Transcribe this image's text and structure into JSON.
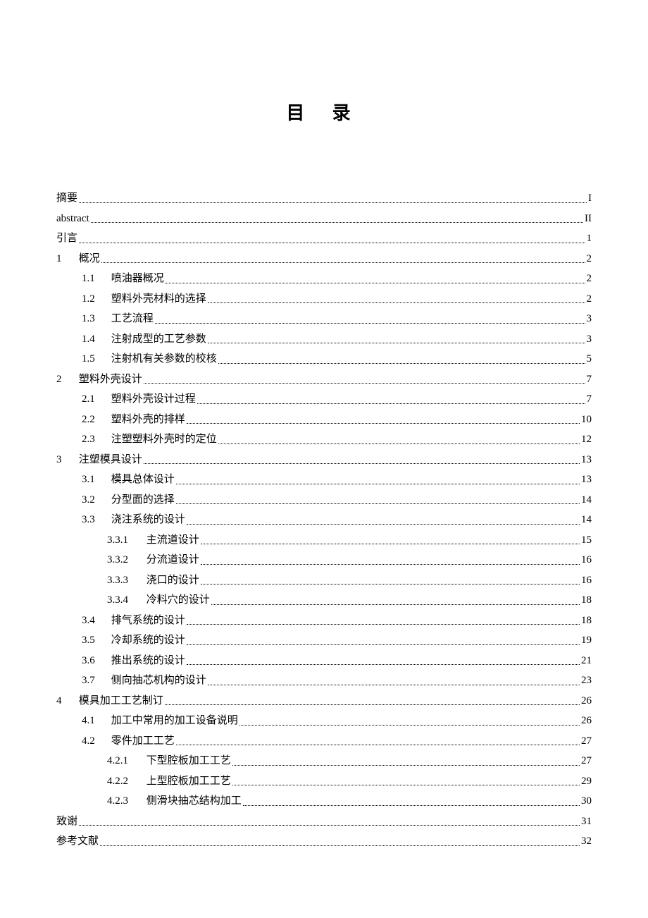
{
  "title": "目 录",
  "entries": [
    {
      "indent": 0,
      "num": "",
      "label": "摘要",
      "page": "I"
    },
    {
      "indent": 0,
      "num": "",
      "label": "abstract",
      "page": "II"
    },
    {
      "indent": 0,
      "num": "",
      "label": "引言",
      "page": "1"
    },
    {
      "indent": 0,
      "num": "1",
      "label": "概况",
      "page": "2"
    },
    {
      "indent": 1,
      "num": "1.1",
      "label": "喷油器概况",
      "page": "2"
    },
    {
      "indent": 1,
      "num": "1.2",
      "label": "塑料外壳材料的选择",
      "page": "2"
    },
    {
      "indent": 1,
      "num": "1.3",
      "label": "工艺流程",
      "page": "3"
    },
    {
      "indent": 1,
      "num": "1.4",
      "label": "注射成型的工艺参数",
      "page": "3"
    },
    {
      "indent": 1,
      "num": "1.5",
      "label": "注射机有关参数的校核",
      "page": "5"
    },
    {
      "indent": 0,
      "num": "2",
      "label": "塑料外壳设计",
      "page": "7"
    },
    {
      "indent": 1,
      "num": "2.1",
      "label": "塑料外壳设计过程",
      "page": "7"
    },
    {
      "indent": 1,
      "num": "2.2",
      "label": "塑料外壳的排样",
      "page": "10"
    },
    {
      "indent": 1,
      "num": "2.3",
      "label": "注塑塑料外壳时的定位",
      "page": "12"
    },
    {
      "indent": 0,
      "num": "3",
      "label": "注塑模具设计",
      "page": "13"
    },
    {
      "indent": 1,
      "num": "3.1",
      "label": "模具总体设计",
      "page": "13"
    },
    {
      "indent": 1,
      "num": "3.2",
      "label": "分型面的选择",
      "page": "14"
    },
    {
      "indent": 1,
      "num": "3.3",
      "label": "浇注系统的设计",
      "page": "14"
    },
    {
      "indent": 2,
      "num": "3.3.1",
      "label": "主流道设计",
      "page": "15"
    },
    {
      "indent": 2,
      "num": "3.3.2",
      "label": "分流道设计",
      "page": "16"
    },
    {
      "indent": 2,
      "num": "3.3.3",
      "label": "浇口的设计",
      "page": "16"
    },
    {
      "indent": 2,
      "num": "3.3.4",
      "label": "冷料穴的设计",
      "page": "18"
    },
    {
      "indent": 1,
      "num": "3.4",
      "label": "排气系统的设计",
      "page": "18"
    },
    {
      "indent": 1,
      "num": "3.5",
      "label": "冷却系统的设计",
      "page": "19"
    },
    {
      "indent": 1,
      "num": "3.6",
      "label": "推出系统的设计",
      "page": "21"
    },
    {
      "indent": 1,
      "num": "3.7",
      "label": "侧向抽芯机构的设计",
      "page": "23"
    },
    {
      "indent": 0,
      "num": "4",
      "label": "模具加工工艺制订",
      "page": "26"
    },
    {
      "indent": 1,
      "num": "4.1",
      "label": "加工中常用的加工设备说明",
      "page": "26"
    },
    {
      "indent": 1,
      "num": "4.2",
      "label": "零件加工工艺",
      "page": "27"
    },
    {
      "indent": 2,
      "num": "4.2.1",
      "label": "下型腔板加工工艺",
      "page": "27"
    },
    {
      "indent": 2,
      "num": "4.2.2",
      "label": "上型腔板加工工艺",
      "page": "29"
    },
    {
      "indent": 2,
      "num": "4.2.3",
      "label": "侧滑块抽芯结构加工",
      "page": "30"
    },
    {
      "indent": 0,
      "num": "",
      "label": "致谢",
      "page": "31"
    },
    {
      "indent": 0,
      "num": "",
      "label": "参考文献",
      "page": "32"
    }
  ]
}
